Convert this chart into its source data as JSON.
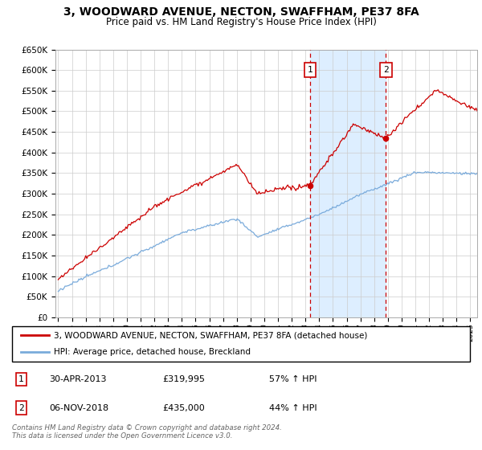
{
  "title": "3, WOODWARD AVENUE, NECTON, SWAFFHAM, PE37 8FA",
  "subtitle": "Price paid vs. HM Land Registry's House Price Index (HPI)",
  "legend_line1": "3, WOODWARD AVENUE, NECTON, SWAFFHAM, PE37 8FA (detached house)",
  "legend_line2": "HPI: Average price, detached house, Breckland",
  "annotation1_label": "1",
  "annotation1_date": "30-APR-2013",
  "annotation1_price": "£319,995",
  "annotation1_hpi": "57% ↑ HPI",
  "annotation1_year": 2013.33,
  "annotation2_label": "2",
  "annotation2_date": "06-NOV-2018",
  "annotation2_price": "£435,000",
  "annotation2_hpi": "44% ↑ HPI",
  "annotation2_year": 2018.85,
  "annotation1_value": 319995,
  "annotation2_value": 435000,
  "ylim": [
    0,
    650000
  ],
  "yticks": [
    0,
    50000,
    100000,
    150000,
    200000,
    250000,
    300000,
    350000,
    400000,
    450000,
    500000,
    550000,
    600000,
    650000
  ],
  "footer": "Contains HM Land Registry data © Crown copyright and database right 2024.\nThis data is licensed under the Open Government Licence v3.0.",
  "red_color": "#cc0000",
  "blue_color": "#7aabdb",
  "shade_color": "#ddeeff",
  "grid_color": "#cccccc",
  "box_edge_color": "#cc0000"
}
